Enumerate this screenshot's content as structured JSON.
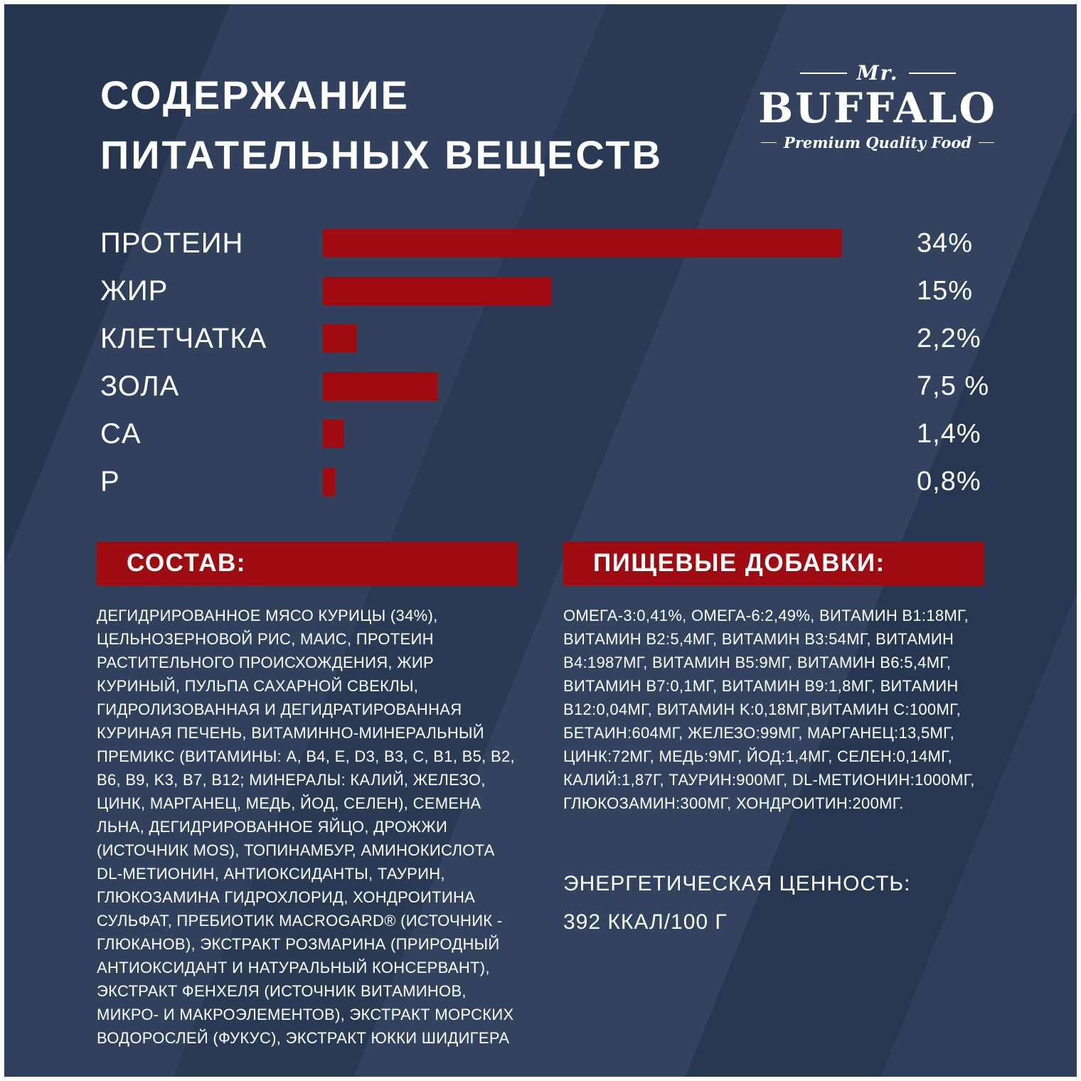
{
  "header": {
    "title_line1": "СОДЕРЖАНИЕ",
    "title_line2": "ПИТАТЕЛЬНЫХ ВЕЩЕСТВ"
  },
  "logo": {
    "prefix": "Mr.",
    "name": "BUFFALO",
    "tagline": "Premium Quality Food"
  },
  "chart_data": {
    "type": "bar",
    "orientation": "horizontal",
    "title": "СОДЕРЖАНИЕ ПИТАТЕЛЬНЫХ ВЕЩЕСТВ",
    "categories": [
      "ПРОТЕИН",
      "ЖИР",
      "КЛЕТЧАТКА",
      "ЗОЛА",
      "CA",
      "P"
    ],
    "values": [
      34,
      15,
      2.2,
      7.5,
      1.4,
      0.8
    ],
    "value_labels": [
      "34%",
      "15%",
      "2,2%",
      "7,5 %",
      "1,4%",
      "0,8%"
    ],
    "xlim": [
      0,
      34
    ],
    "bar_color": "#9e0c11",
    "grid": false,
    "legend": false
  },
  "composition": {
    "header": "СОСТАВ:",
    "text": "ДЕГИДРИРОВАННОЕ МЯСО КУРИЦЫ (34%), ЦЕЛЬНОЗЕРНОВОЙ РИС, МАИС, ПРОТЕИН РАСТИТЕЛЬНОГО ПРОИСХОЖДЕНИЯ, ЖИР КУРИНЫЙ, ПУЛЬПА САХАРНОЙ СВЕКЛЫ, ГИДРОЛИЗОВАННАЯ И ДЕГИДРАТИРОВАННАЯ КУРИНАЯ ПЕЧЕНЬ, ВИТАМИННО-МИНЕРАЛЬНЫЙ ПРЕМИКС (ВИТАМИНЫ: A, B4, E, D3, B3, C, B1, B5, B2, B6, B9, K3, B7, B12; МИНЕРАЛЫ: КАЛИЙ, ЖЕЛЕЗО, ЦИНК, МАРГАНЕЦ, МЕДЬ, ЙОД, СЕЛЕН), СЕМЕНА ЛЬНА, ДЕГИДРИРОВАННОЕ ЯЙЦО, ДРОЖЖИ (ИСТОЧНИК MOS), ТОПИНАМБУР, АМИНОКИСЛОТА DL-МЕТИОНИН, АНТИОКСИДАНТЫ, ТАУРИН, ГЛЮКОЗАМИНА ГИДРОХЛОРИД, ХОНДРОИТИНА СУЛЬФАТ, ПРЕБИОТИК MACROGARD® (ИСТОЧНИК - ГЛЮКАНОВ), ЭКСТРАКТ РОЗМАРИНА (ПРИРОДНЫЙ АНТИОКСИДАНТ И НАТУРАЛЬНЫЙ КОНСЕРВАНТ), ЭКСТРАКТ ФЕНХЕЛЯ (ИСТОЧНИК ВИТАМИНОВ, МИКРО- И МАКРОЭЛЕМЕНТОВ), ЭКСТРАКТ МОРСКИХ ВОДОРОСЛЕЙ (ФУКУС), ЭКСТРАКТ ЮККИ ШИДИГЕРА"
  },
  "additives": {
    "header": "ПИЩЕВЫЕ ДОБАВКИ:",
    "text": "ОМЕГА-3:0,41%, ОМЕГА-6:2,49%, ВИТАМИН B1:18МГ, ВИТАМИН B2:5,4МГ, ВИТАМИН B3:54МГ, ВИТАМИН B4:1987МГ, ВИТАМИН B5:9МГ, ВИТАМИН B6:5,4МГ, ВИТАМИН B7:0,1МГ, ВИТАМИН B9:1,8МГ, ВИТАМИН B12:0,04МГ, ВИТАМИН K:0,18МГ,ВИТАМИН C:100МГ, БЕТАИН:604МГ, ЖЕЛЕЗО:99МГ, МАРГАНЕЦ:13,5МГ, ЦИНК:72МГ, МЕДЬ:9МГ, ЙОД:1,4МГ, СЕЛЕН:0,14МГ, КАЛИЙ:1,87Г, ТАУРИН:900МГ, DL-МЕТИОНИН:1000МГ, ГЛЮКОЗАМИН:300МГ, ХОНДРОИТИН:200МГ."
  },
  "energy": {
    "line1": "ЭНЕРГЕТИЧЕСКАЯ ЦЕННОСТЬ:",
    "line2": "392 ККАЛ/100 Г"
  },
  "colors": {
    "background": "#31405c",
    "accent_red": "#9e0c11",
    "text": "#ffffff"
  }
}
